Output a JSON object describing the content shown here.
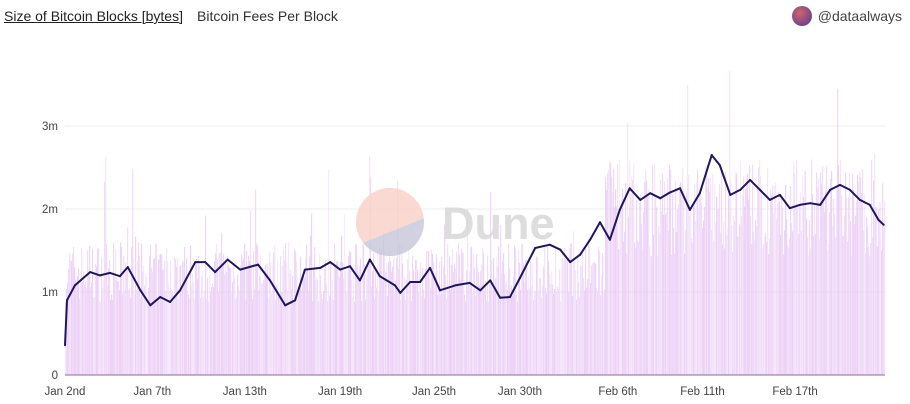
{
  "header": {
    "tabs": [
      {
        "label": "Size of Bitcoin Blocks [bytes]",
        "active": true
      },
      {
        "label": "Bitcoin Fees Per Block",
        "active": false
      }
    ],
    "author": "@dataalways"
  },
  "watermark": "Dune",
  "colors": {
    "line": "#1f1660",
    "bars": "#e9c9f5",
    "grid": "#ececec",
    "axis": "#8a6a9a"
  },
  "chart_data": {
    "type": "line",
    "title": "Size of Bitcoin Blocks [bytes]",
    "xlabel": "",
    "ylabel": "",
    "grid": true,
    "ylim": [
      0,
      3500000
    ],
    "xlim": [
      "2023-01-02T00:00",
      "2023-02-22T16:00"
    ],
    "y_ticks": [
      {
        "value": 0,
        "label": "0"
      },
      {
        "value": 1000000,
        "label": "1m"
      },
      {
        "value": 2000000,
        "label": "2m"
      },
      {
        "value": 3000000,
        "label": "3m"
      }
    ],
    "x_ticks": [
      {
        "value": "2023-01-02T00:00",
        "label": "Jan 2nd"
      },
      {
        "value": "2023-01-07T12:00",
        "label": "Jan 7th"
      },
      {
        "value": "2023-01-13T08:00",
        "label": "Jan 13th"
      },
      {
        "value": "2023-01-19T08:00",
        "label": "Jan 19th"
      },
      {
        "value": "2023-01-25T06:00",
        "label": "Jan 25th"
      },
      {
        "value": "2023-01-30T16:00",
        "label": "Jan 30th"
      },
      {
        "value": "2023-02-05T20:00",
        "label": "Feb 6th"
      },
      {
        "value": "2023-02-11T04:00",
        "label": "Feb 11th"
      },
      {
        "value": "2023-02-17T00:00",
        "label": "Feb 17th"
      }
    ],
    "series": [
      {
        "type": "line",
        "x": [
          "2023-01-02T00:00",
          "2023-01-02T03:00",
          "2023-01-02T15:00",
          "2023-01-03T14:00",
          "2023-01-04T05:00",
          "2023-01-04T20:00",
          "2023-01-05T11:00",
          "2023-01-05T23:00",
          "2023-01-06T18:00",
          "2023-01-07T09:00",
          "2023-01-08T00:00",
          "2023-01-08T15:00",
          "2023-01-09T06:00",
          "2023-01-10T05:00",
          "2023-01-10T20:00",
          "2023-01-11T11:00",
          "2023-01-12T06:00",
          "2023-01-13T01:00",
          "2023-01-14T04:00",
          "2023-01-14T22:00",
          "2023-01-15T21:00",
          "2023-01-16T12:00",
          "2023-01-17T03:00",
          "2023-01-18T02:00",
          "2023-01-18T17:00",
          "2023-01-19T08:00",
          "2023-01-19T23:00",
          "2023-01-20T14:00",
          "2023-01-21T05:00",
          "2023-01-21T20:00",
          "2023-01-22T19:00",
          "2023-01-23T03:00",
          "2023-01-23T18:00",
          "2023-01-24T09:00",
          "2023-01-25T00:00",
          "2023-01-25T15:00",
          "2023-01-26T14:00",
          "2023-01-27T12:00",
          "2023-01-28T04:00",
          "2023-01-28T19:00",
          "2023-01-29T10:00",
          "2023-01-30T01:00",
          "2023-01-30T16:00",
          "2023-01-31T15:00",
          "2023-02-01T13:00",
          "2023-02-02T05:00",
          "2023-02-02T20:00",
          "2023-02-03T11:00",
          "2023-02-04T02:00",
          "2023-02-04T17:00",
          "2023-02-05T08:00",
          "2023-02-05T23:00",
          "2023-02-06T14:00",
          "2023-02-07T06:00",
          "2023-02-07T21:00",
          "2023-02-08T12:00",
          "2023-02-09T03:00",
          "2023-02-09T18:00",
          "2023-02-10T09:00",
          "2023-02-11T00:00",
          "2023-02-11T18:00",
          "2023-02-12T06:00",
          "2023-02-12T22:00",
          "2023-02-13T13:00",
          "2023-02-14T04:00",
          "2023-02-14T19:00",
          "2023-02-15T10:00",
          "2023-02-16T01:00",
          "2023-02-16T16:00",
          "2023-02-17T07:00",
          "2023-02-17T23:00",
          "2023-02-18T14:00",
          "2023-02-19T05:00",
          "2023-02-19T20:00",
          "2023-02-20T11:00",
          "2023-02-21T02:00",
          "2023-02-21T17:00",
          "2023-02-22T06:00",
          "2023-02-22T14:00"
        ],
        "values": [
          360000,
          900000,
          1080000,
          1240000,
          1200000,
          1230000,
          1190000,
          1300000,
          1020000,
          840000,
          940000,
          880000,
          1020000,
          1360000,
          1360000,
          1240000,
          1390000,
          1270000,
          1330000,
          1140000,
          840000,
          900000,
          1270000,
          1290000,
          1360000,
          1270000,
          1310000,
          1140000,
          1390000,
          1190000,
          1080000,
          990000,
          1120000,
          1120000,
          1290000,
          1020000,
          1080000,
          1110000,
          1020000,
          1140000,
          930000,
          940000,
          1170000,
          1530000,
          1570000,
          1510000,
          1360000,
          1450000,
          1630000,
          1840000,
          1630000,
          1990000,
          2250000,
          2110000,
          2190000,
          2130000,
          2200000,
          2250000,
          1990000,
          2190000,
          2650000,
          2530000,
          2170000,
          2230000,
          2350000,
          2230000,
          2110000,
          2170000,
          2010000,
          2050000,
          2070000,
          2050000,
          2230000,
          2290000,
          2230000,
          2110000,
          2050000,
          1870000,
          1810000
        ]
      }
    ]
  }
}
